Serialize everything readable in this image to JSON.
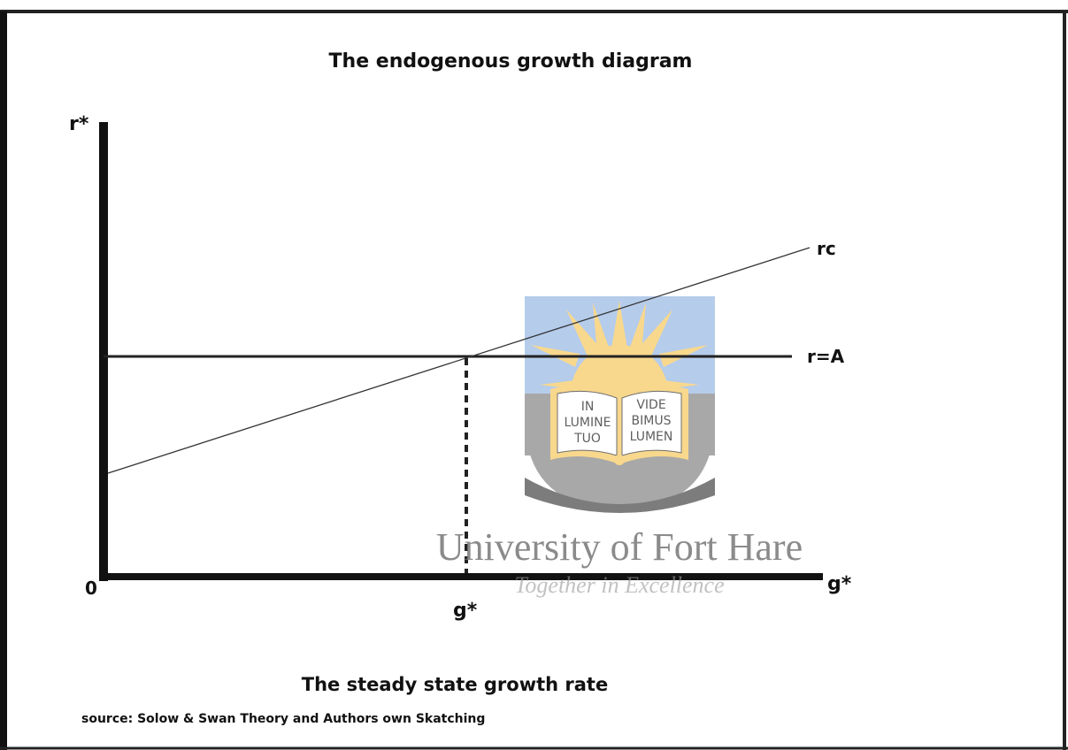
{
  "title": "The endogenous growth diagram",
  "axes": {
    "y_label": "r*",
    "x_label": "g*",
    "origin": "0"
  },
  "lines": [
    {
      "label": "rc"
    },
    {
      "label": "r=A"
    }
  ],
  "marker_label": "g*",
  "caption": "The steady state growth rate",
  "source": "source: Solow & Swan Theory and Authors own Skatching",
  "watermark": {
    "book_left": [
      "IN",
      "LUMINE",
      "TUO"
    ],
    "book_right": [
      "VIDE",
      "BIMUS",
      "LUMEN"
    ],
    "name": "University of Fort Hare",
    "motto": "Together in Excellence"
  }
}
